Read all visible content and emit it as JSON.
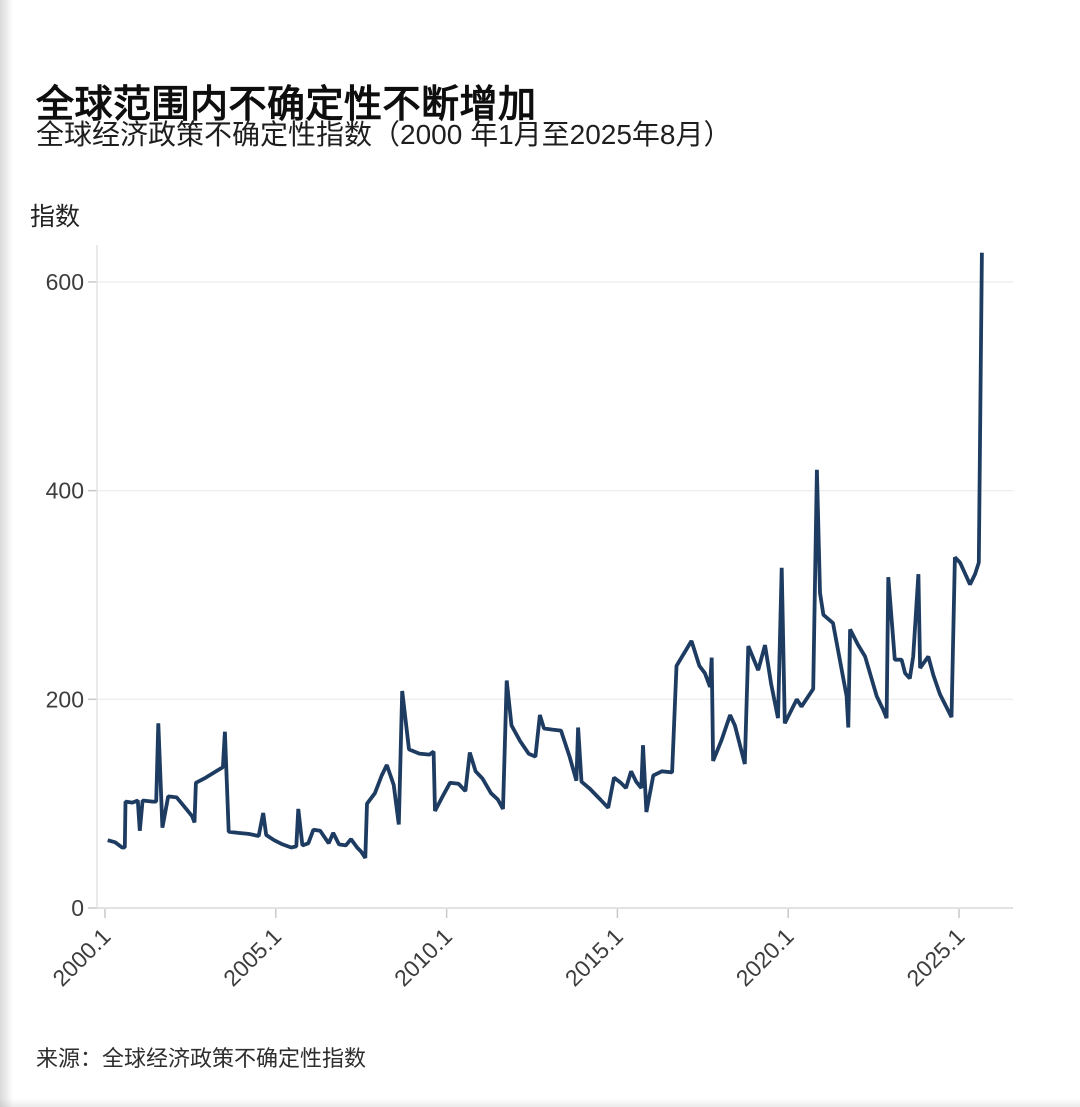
{
  "header": {
    "title": "全球范围内不确定性不断增加",
    "subtitle": "全球经济政策不确定性指数（2000 年1月至2025年8月）"
  },
  "source_note": "来源：全球经济政策不确定性指数",
  "chart_data": {
    "type": "line",
    "title": "全球范围内不确定性不断增加",
    "subtitle": "全球经济政策不确定性指数（2000 年1月至2025年8月）",
    "xlabel": "",
    "ylabel": "指数",
    "unit_label": "指数",
    "legend": "none",
    "grid": true,
    "line_color": "#1e3c61",
    "grid_color": "#eeeeee",
    "axis_color": "#d8d8d8",
    "tick_color": "#c9c9c9",
    "label_color": "#3d3d3d",
    "x_axis": {
      "range": [
        1999.766,
        2026.58
      ],
      "ticks": [
        {
          "t": 2000,
          "label": "2000.1"
        },
        {
          "t": 2005,
          "label": "2005.1"
        },
        {
          "t": 2010,
          "label": "2010.1"
        },
        {
          "t": 2015,
          "label": "2015.1"
        },
        {
          "t": 2020,
          "label": "2020.1"
        },
        {
          "t": 2025,
          "label": "2025.1"
        }
      ]
    },
    "y_axis": {
      "range": [
        0,
        635.4
      ],
      "ticks": [
        {
          "v": 0,
          "label": "0"
        },
        {
          "v": 200,
          "label": "200"
        },
        {
          "v": 400,
          "label": "400"
        },
        {
          "v": 600,
          "label": "600"
        }
      ]
    },
    "series": [
      {
        "name": "全球经济政策不确定性指数",
        "points": [
          [
            2000.08,
            65
          ],
          [
            2000.3,
            63
          ],
          [
            2000.5,
            58
          ],
          [
            2000.58,
            58
          ],
          [
            2000.6,
            102
          ],
          [
            2000.8,
            101
          ],
          [
            2000.96,
            103
          ],
          [
            2001.02,
            74
          ],
          [
            2001.1,
            103
          ],
          [
            2001.4,
            102
          ],
          [
            2001.5,
            102
          ],
          [
            2001.56,
            177
          ],
          [
            2001.68,
            77
          ],
          [
            2001.85,
            107
          ],
          [
            2002.1,
            106
          ],
          [
            2002.35,
            96
          ],
          [
            2002.55,
            88
          ],
          [
            2002.62,
            82
          ],
          [
            2002.66,
            120
          ],
          [
            2002.9,
            124
          ],
          [
            2003.2,
            130
          ],
          [
            2003.45,
            135
          ],
          [
            2003.51,
            169
          ],
          [
            2003.62,
            73
          ],
          [
            2003.9,
            72
          ],
          [
            2004.2,
            71
          ],
          [
            2004.5,
            69
          ],
          [
            2004.63,
            91
          ],
          [
            2004.72,
            70
          ],
          [
            2004.95,
            65
          ],
          [
            2005.2,
            61
          ],
          [
            2005.45,
            58
          ],
          [
            2005.6,
            59
          ],
          [
            2005.66,
            95
          ],
          [
            2005.78,
            60
          ],
          [
            2005.95,
            62
          ],
          [
            2006.1,
            75
          ],
          [
            2006.3,
            74
          ],
          [
            2006.55,
            62
          ],
          [
            2006.68,
            72
          ],
          [
            2006.85,
            61
          ],
          [
            2007.05,
            60
          ],
          [
            2007.2,
            66
          ],
          [
            2007.38,
            58
          ],
          [
            2007.5,
            54
          ],
          [
            2007.62,
            48
          ],
          [
            2007.67,
            100
          ],
          [
            2007.9,
            110
          ],
          [
            2008.1,
            127
          ],
          [
            2008.25,
            137
          ],
          [
            2008.45,
            118
          ],
          [
            2008.6,
            80
          ],
          [
            2008.7,
            208
          ],
          [
            2008.9,
            152
          ],
          [
            2009.2,
            148
          ],
          [
            2009.5,
            147
          ],
          [
            2009.62,
            150
          ],
          [
            2009.66,
            93
          ],
          [
            2009.9,
            108
          ],
          [
            2010.1,
            120
          ],
          [
            2010.35,
            119
          ],
          [
            2010.55,
            112
          ],
          [
            2010.68,
            149
          ],
          [
            2010.85,
            131
          ],
          [
            2011.05,
            124
          ],
          [
            2011.3,
            110
          ],
          [
            2011.5,
            104
          ],
          [
            2011.65,
            95
          ],
          [
            2011.76,
            218
          ],
          [
            2011.9,
            175
          ],
          [
            2012.15,
            160
          ],
          [
            2012.4,
            148
          ],
          [
            2012.6,
            145
          ],
          [
            2012.73,
            185
          ],
          [
            2012.85,
            172
          ],
          [
            2013.1,
            171
          ],
          [
            2013.35,
            170
          ],
          [
            2013.6,
            145
          ],
          [
            2013.8,
            122
          ],
          [
            2013.85,
            173
          ],
          [
            2013.95,
            121
          ],
          [
            2014.2,
            114
          ],
          [
            2014.5,
            104
          ],
          [
            2014.73,
            96
          ],
          [
            2014.9,
            125
          ],
          [
            2015.1,
            120
          ],
          [
            2015.25,
            115
          ],
          [
            2015.4,
            131
          ],
          [
            2015.55,
            121
          ],
          [
            2015.7,
            115
          ],
          [
            2015.75,
            156
          ],
          [
            2015.85,
            92
          ],
          [
            2016.05,
            127
          ],
          [
            2016.3,
            131
          ],
          [
            2016.6,
            130
          ],
          [
            2016.73,
            232
          ],
          [
            2017.17,
            256
          ],
          [
            2017.4,
            232
          ],
          [
            2017.56,
            225
          ],
          [
            2017.71,
            212
          ],
          [
            2017.76,
            240
          ],
          [
            2017.8,
            141
          ],
          [
            2018.05,
            161
          ],
          [
            2018.3,
            185
          ],
          [
            2018.44,
            175
          ],
          [
            2018.73,
            138
          ],
          [
            2018.83,
            251
          ],
          [
            2019.12,
            228
          ],
          [
            2019.32,
            252
          ],
          [
            2019.5,
            215
          ],
          [
            2019.7,
            182
          ],
          [
            2019.81,
            326
          ],
          [
            2019.9,
            177
          ],
          [
            2020.25,
            200
          ],
          [
            2020.39,
            193
          ],
          [
            2020.73,
            210
          ],
          [
            2020.84,
            420
          ],
          [
            2020.93,
            302
          ],
          [
            2021.03,
            281
          ],
          [
            2021.31,
            273
          ],
          [
            2021.71,
            203
          ],
          [
            2021.76,
            173
          ],
          [
            2021.81,
            267
          ],
          [
            2022.05,
            252
          ],
          [
            2022.25,
            241
          ],
          [
            2022.59,
            203
          ],
          [
            2022.78,
            190
          ],
          [
            2022.88,
            182
          ],
          [
            2022.93,
            317
          ],
          [
            2023.12,
            238
          ],
          [
            2023.32,
            238
          ],
          [
            2023.42,
            225
          ],
          [
            2023.56,
            220
          ],
          [
            2023.66,
            241
          ],
          [
            2023.81,
            320
          ],
          [
            2023.86,
            230
          ],
          [
            2024.1,
            241
          ],
          [
            2024.25,
            223
          ],
          [
            2024.44,
            205
          ],
          [
            2024.78,
            183
          ],
          [
            2024.88,
            336
          ],
          [
            2025.03,
            331
          ],
          [
            2025.32,
            310
          ],
          [
            2025.47,
            320
          ],
          [
            2025.58,
            331
          ],
          [
            2025.67,
            628
          ]
        ]
      }
    ]
  }
}
